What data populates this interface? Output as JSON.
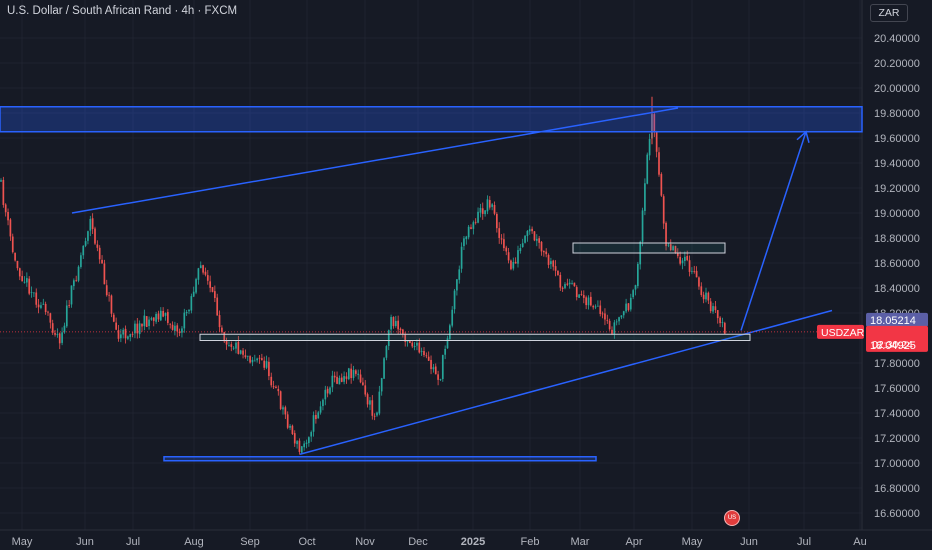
{
  "header": {
    "title": "U.S. Dollar / South African Rand · 4h · FXCM"
  },
  "price_axis": {
    "currency_button": "ZAR",
    "ticks": [
      "20.40000",
      "20.20000",
      "20.00000",
      "19.80000",
      "19.60000",
      "19.40000",
      "19.20000",
      "19.00000",
      "18.80000",
      "18.60000",
      "18.40000",
      "18.20000",
      "18.00000",
      "17.80000",
      "17.60000",
      "17.40000",
      "17.20000",
      "17.00000",
      "16.80000",
      "16.60000"
    ],
    "labels": {
      "symbol": "USDZAR",
      "upper_price": "18.05214",
      "last_price": "18.04925",
      "countdown": "02:30:24"
    }
  },
  "time_axis": {
    "labels": [
      "May",
      "Jun",
      "Jul",
      "Aug",
      "Sep",
      "Oct",
      "Nov",
      "Dec",
      "2025",
      "Feb",
      "Mar",
      "Apr",
      "May",
      "Jun",
      "Jul",
      "Au"
    ]
  },
  "colors": {
    "background": "#161a25",
    "bull": "#26a69a",
    "bear": "#ef5350",
    "drawing": "#2962ff",
    "price_label": "#f23645",
    "upper_label": "#5b5fa6"
  },
  "chart_data": {
    "type": "candlestick",
    "symbol": "USDZAR",
    "timeframe": "4h",
    "source": "FXCM",
    "ylim": [
      16.55,
      20.55
    ],
    "last_price": 18.04925,
    "close_path": [
      {
        "x": "May",
        "y": 19.25
      },
      {
        "x": "May",
        "y": 18.6
      },
      {
        "x": "May",
        "y": 18.0
      },
      {
        "x": "Jun",
        "y": 18.95
      },
      {
        "x": "Jun",
        "y": 18.0
      },
      {
        "x": "Jul",
        "y": 18.2
      },
      {
        "x": "Jul",
        "y": 18.05
      },
      {
        "x": "Aug",
        "y": 18.6
      },
      {
        "x": "Aug",
        "y": 18.0
      },
      {
        "x": "Sep",
        "y": 17.85
      },
      {
        "x": "Sep",
        "y": 17.8
      },
      {
        "x": "Oct",
        "y": 17.08
      },
      {
        "x": "Oct",
        "y": 17.65
      },
      {
        "x": "Nov",
        "y": 17.75
      },
      {
        "x": "Nov",
        "y": 17.35
      },
      {
        "x": "Nov",
        "y": 18.15
      },
      {
        "x": "Dec",
        "y": 17.98
      },
      {
        "x": "Dec",
        "y": 17.68
      },
      {
        "x": "Dec",
        "y": 18.85
      },
      {
        "x": "2025",
        "y": 19.1
      },
      {
        "x": "2025",
        "y": 18.55
      },
      {
        "x": "Feb",
        "y": 18.85
      },
      {
        "x": "Feb",
        "y": 18.45
      },
      {
        "x": "Mar",
        "y": 18.3
      },
      {
        "x": "Mar",
        "y": 18.05
      },
      {
        "x": "Apr",
        "y": 18.35
      },
      {
        "x": "Apr",
        "y": 19.85
      },
      {
        "x": "Apr",
        "y": 18.8
      },
      {
        "x": "May",
        "y": 18.55
      },
      {
        "x": "May",
        "y": 18.05
      }
    ],
    "drawings": {
      "resistance_zone": [
        19.65,
        19.85
      ],
      "support_zone": [
        17.02,
        17.05
      ],
      "mid_zone": [
        17.98,
        18.03
      ],
      "small_zone": [
        18.68,
        18.76
      ],
      "projection_target": 19.65
    }
  }
}
